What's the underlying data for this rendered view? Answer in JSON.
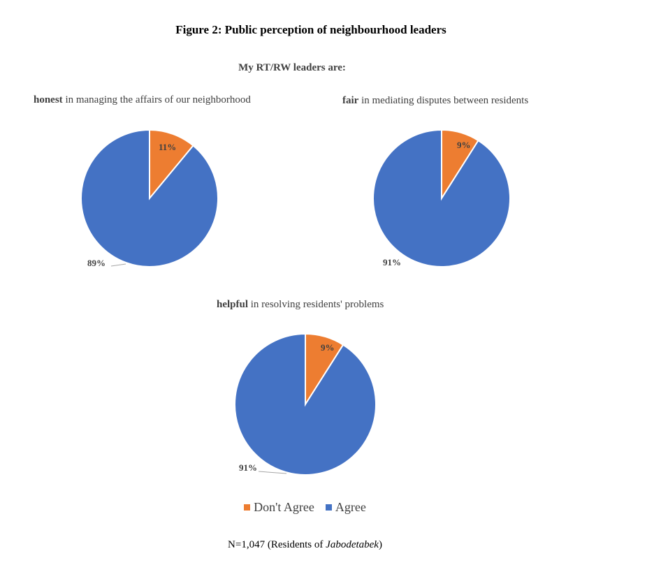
{
  "figure": {
    "title": "Figure 2: Public perception of neighbourhood leaders",
    "subtitle": "My RT/RW leaders are:"
  },
  "colors": {
    "dont_agree": "#ed7d31",
    "agree": "#4472c4"
  },
  "legend": {
    "dont_agree": "Don't Agree",
    "agree": "Agree"
  },
  "footnote": {
    "prefix": "N=1,047 (Residents of ",
    "place": "Jabodetabek",
    "suffix": ")"
  },
  "chart_data": [
    {
      "type": "pie",
      "title_keyword": "honest",
      "title_rest": " in managing the affairs of our neighborhood",
      "categories": [
        "Don't Agree",
        "Agree"
      ],
      "values": [
        11,
        89
      ],
      "labels": [
        "11%",
        "89%"
      ]
    },
    {
      "type": "pie",
      "title_keyword": "fair",
      "title_rest": " in mediating disputes between residents",
      "categories": [
        "Don't Agree",
        "Agree"
      ],
      "values": [
        9,
        91
      ],
      "labels": [
        "9%",
        "91%"
      ]
    },
    {
      "type": "pie",
      "title_keyword": "helpful",
      "title_rest": " in resolving residents' problems",
      "categories": [
        "Don't Agree",
        "Agree"
      ],
      "values": [
        9,
        91
      ],
      "labels": [
        "9%",
        "91%"
      ]
    }
  ]
}
